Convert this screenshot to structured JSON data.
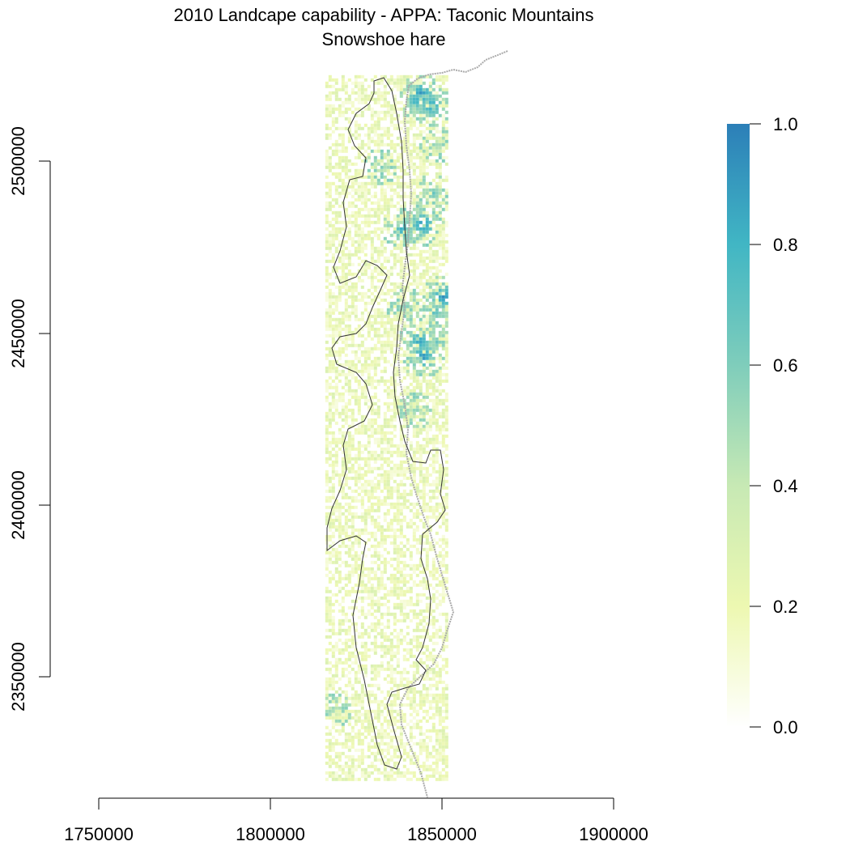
{
  "chart_data": {
    "type": "heatmap",
    "title": "2010 Landcape capability - APPA: Taconic Mountains",
    "subtitle": "Snowshoe hare",
    "x_ticks": [
      "1750000",
      "1800000",
      "1850000",
      "1900000"
    ],
    "y_ticks": [
      "2350000",
      "2400000",
      "2450000",
      "2500000"
    ],
    "xlim": [
      1750000,
      1900000
    ],
    "ylim": [
      2350000,
      2500000
    ],
    "raster_extent": {
      "x": [
        1816000,
        1851000
      ],
      "y": [
        2320000,
        2525000
      ]
    },
    "colorbar": {
      "range": [
        0,
        1
      ],
      "ticks": [
        "0.0",
        "0.2",
        "0.4",
        "0.6",
        "0.8",
        "1.0"
      ],
      "colors": [
        "#ffffff",
        "#edf8b1",
        "#c7e9b4",
        "#7fcdbb",
        "#41b6c4",
        "#2c7fb8"
      ]
    },
    "high_value_patches": [
      {
        "x": 1843500,
        "y": 2520000,
        "v": 0.95
      },
      {
        "x": 1846500,
        "y": 2516500,
        "v": 0.9
      },
      {
        "x": 1842000,
        "y": 2518000,
        "v": 0.85
      },
      {
        "x": 1844000,
        "y": 2482000,
        "v": 0.95
      },
      {
        "x": 1838000,
        "y": 2480500,
        "v": 0.85
      },
      {
        "x": 1850000,
        "y": 2461000,
        "v": 0.95
      },
      {
        "x": 1847500,
        "y": 2456500,
        "v": 0.75
      },
      {
        "x": 1844000,
        "y": 2443500,
        "v": 0.95
      },
      {
        "x": 1843000,
        "y": 2448000,
        "v": 0.9
      },
      {
        "x": 1847000,
        "y": 2491000,
        "v": 0.7
      },
      {
        "x": 1848500,
        "y": 2505000,
        "v": 0.55
      },
      {
        "x": 1842000,
        "y": 2428000,
        "v": 0.6
      },
      {
        "x": 1832000,
        "y": 2499000,
        "v": 0.6
      },
      {
        "x": 1818000,
        "y": 2341000,
        "v": 0.55
      },
      {
        "x": 1839000,
        "y": 2458000,
        "v": 0.65
      },
      {
        "x": 1848000,
        "y": 2448000,
        "v": 0.7
      }
    ]
  }
}
